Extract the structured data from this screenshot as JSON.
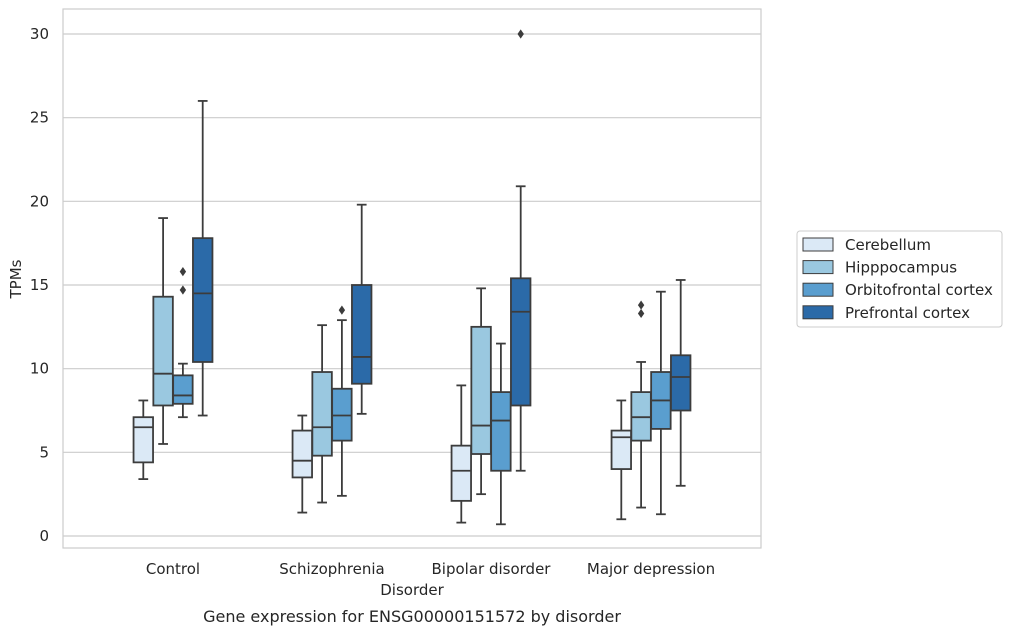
{
  "chart_data": {
    "type": "boxplot",
    "caption": "Gene expression for ENSG00000151572 by disorder",
    "xlabel": "Disorder",
    "ylabel": "TPMs",
    "ylim": [
      -0.6,
      31.5
    ],
    "yticks": [
      0,
      5,
      10,
      15,
      20,
      25,
      30
    ],
    "grid": "horizontal",
    "legend_position": "right",
    "categories": [
      "Control",
      "Schizophrenia",
      "Bipolar disorder",
      "Major depression"
    ],
    "series": [
      {
        "name": "Cerebellum",
        "color": "#dbe9f6",
        "boxes": [
          {
            "whisker_low": 3.4,
            "q1": 4.4,
            "median": 6.5,
            "q3": 7.1,
            "whisker_high": 8.1,
            "outliers": []
          },
          {
            "whisker_low": 1.4,
            "q1": 3.5,
            "median": 4.5,
            "q3": 6.3,
            "whisker_high": 7.2,
            "outliers": []
          },
          {
            "whisker_low": 0.8,
            "q1": 2.1,
            "median": 3.9,
            "q3": 5.4,
            "whisker_high": 9.0,
            "outliers": []
          },
          {
            "whisker_low": 1.0,
            "q1": 4.0,
            "median": 5.9,
            "q3": 6.3,
            "whisker_high": 8.1,
            "outliers": []
          }
        ]
      },
      {
        "name": "Hipppocampus",
        "color": "#9ac8e0",
        "boxes": [
          {
            "whisker_low": 5.5,
            "q1": 7.8,
            "median": 9.7,
            "q3": 14.3,
            "whisker_high": 19.0,
            "outliers": []
          },
          {
            "whisker_low": 2.0,
            "q1": 4.8,
            "median": 6.5,
            "q3": 9.8,
            "whisker_high": 12.6,
            "outliers": []
          },
          {
            "whisker_low": 2.5,
            "q1": 4.9,
            "median": 6.6,
            "q3": 12.5,
            "whisker_high": 14.8,
            "outliers": []
          },
          {
            "whisker_low": 1.7,
            "q1": 5.7,
            "median": 7.1,
            "q3": 8.6,
            "whisker_high": 10.4,
            "outliers": [
              13.3,
              13.8
            ]
          }
        ]
      },
      {
        "name": "Orbitofrontal cortex",
        "color": "#5a9ecf",
        "boxes": [
          {
            "whisker_low": 7.1,
            "q1": 7.9,
            "median": 8.4,
            "q3": 9.6,
            "whisker_high": 10.3,
            "outliers": [
              14.7,
              15.8
            ]
          },
          {
            "whisker_low": 2.4,
            "q1": 5.7,
            "median": 7.2,
            "q3": 8.8,
            "whisker_high": 12.9,
            "outliers": [
              13.5
            ]
          },
          {
            "whisker_low": 0.7,
            "q1": 3.9,
            "median": 6.9,
            "q3": 8.6,
            "whisker_high": 11.5,
            "outliers": []
          },
          {
            "whisker_low": 1.3,
            "q1": 6.4,
            "median": 8.1,
            "q3": 9.8,
            "whisker_high": 14.6,
            "outliers": []
          }
        ]
      },
      {
        "name": "Prefrontal cortex",
        "color": "#2b6aa8",
        "boxes": [
          {
            "whisker_low": 7.2,
            "q1": 10.4,
            "median": 14.5,
            "q3": 17.8,
            "whisker_high": 26.0,
            "outliers": []
          },
          {
            "whisker_low": 7.3,
            "q1": 9.1,
            "median": 10.7,
            "q3": 15.0,
            "whisker_high": 19.8,
            "outliers": []
          },
          {
            "whisker_low": 3.9,
            "q1": 7.8,
            "median": 13.4,
            "q3": 15.4,
            "whisker_high": 20.9,
            "outliers": [
              30.0
            ]
          },
          {
            "whisker_low": 3.0,
            "q1": 7.5,
            "median": 9.5,
            "q3": 10.8,
            "whisker_high": 15.3,
            "outliers": []
          }
        ]
      }
    ]
  },
  "colors": {
    "box_edge": "#3c3c3c",
    "grid": "#cccccc",
    "frame": "#cccccc",
    "text": "#262626"
  }
}
